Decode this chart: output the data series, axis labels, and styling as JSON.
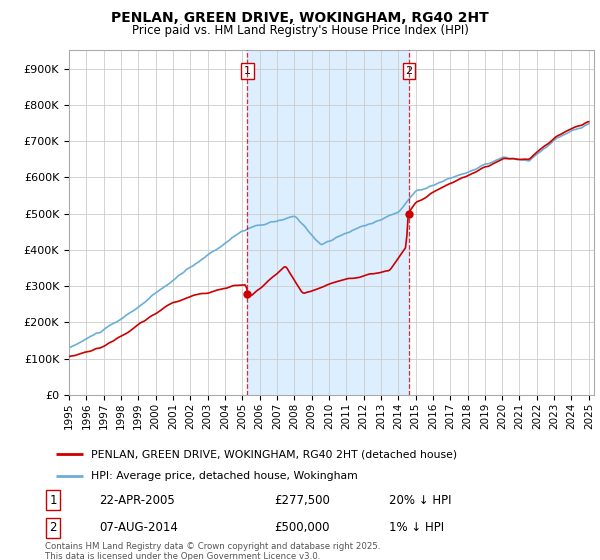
{
  "title": "PENLAN, GREEN DRIVE, WOKINGHAM, RG40 2HT",
  "subtitle": "Price paid vs. HM Land Registry's House Price Index (HPI)",
  "ylim": [
    0,
    950000
  ],
  "yticks": [
    0,
    100000,
    200000,
    300000,
    400000,
    500000,
    600000,
    700000,
    800000,
    900000
  ],
  "ytick_labels": [
    "£0",
    "£100K",
    "£200K",
    "£300K",
    "£400K",
    "£500K",
    "£600K",
    "£700K",
    "£800K",
    "£900K"
  ],
  "hpi_color": "#6baed6",
  "price_color": "#cc0000",
  "shade_color": "#ddeeff",
  "vline_color": "#cc0000",
  "grid_color": "#cccccc",
  "bg_color": "#ffffff",
  "transaction1_year": 2005.3,
  "transaction1_price": 277500,
  "transaction1_date": "22-APR-2005",
  "transaction1_diff": "20% ↓ HPI",
  "transaction2_year": 2014.62,
  "transaction2_price": 500000,
  "transaction2_date": "07-AUG-2014",
  "transaction2_diff": "1% ↓ HPI",
  "legend_line1": "PENLAN, GREEN DRIVE, WOKINGHAM, RG40 2HT (detached house)",
  "legend_line2": "HPI: Average price, detached house, Wokingham",
  "footer": "Contains HM Land Registry data © Crown copyright and database right 2025.\nThis data is licensed under the Open Government Licence v3.0.",
  "x_tick_years": [
    1995,
    1996,
    1997,
    1998,
    1999,
    2000,
    2001,
    2002,
    2003,
    2004,
    2005,
    2006,
    2007,
    2008,
    2009,
    2010,
    2011,
    2012,
    2013,
    2014,
    2015,
    2016,
    2017,
    2018,
    2019,
    2020,
    2021,
    2022,
    2023,
    2024,
    2025
  ]
}
